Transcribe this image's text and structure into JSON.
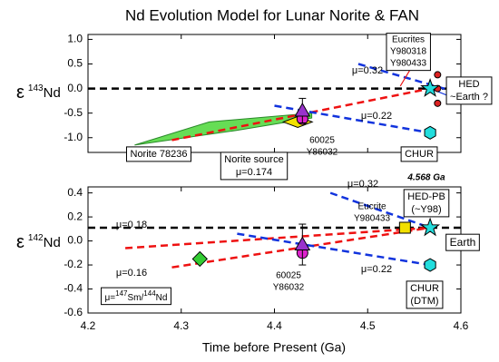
{
  "chart_data": [
    {
      "type": "line",
      "title": "Nd Evolution Model for Lunar Norite & FAN",
      "ylabel": [
        "ε",
        "143",
        "Nd"
      ],
      "xlim": [
        4.2,
        4.6
      ],
      "xticks": [
        4.2,
        4.3,
        4.4,
        4.5,
        4.6
      ],
      "ylim": [
        -1.3,
        1.1
      ],
      "yticks": [
        {
          "value": -1.0,
          "label": "-1.0"
        },
        {
          "value": -0.5,
          "label": "-0.5"
        },
        {
          "value": 0.0,
          "label": "0.0"
        },
        {
          "value": 0.5,
          "label": "0.5"
        },
        {
          "value": 1.0,
          "label": "1.0"
        }
      ],
      "series": [
        {
          "style": "area",
          "color": "#66dd55",
          "x": [
            4.25,
            4.33,
            4.44,
            4.44,
            4.36
          ],
          "values": [
            -1.15,
            -0.68,
            -0.5,
            -0.6,
            -0.85
          ]
        },
        {
          "style": "dashed",
          "color": "#000000",
          "x": [
            4.2,
            4.6
          ],
          "values": [
            0.0,
            0.0
          ]
        },
        {
          "style": "dashed",
          "color": "#ee1111",
          "x": [
            4.29,
            4.567
          ],
          "values": [
            -1.05,
            0.0
          ]
        },
        {
          "style": "dashed",
          "color": "#1133dd",
          "x": [
            4.49,
            4.6
          ],
          "values": [
            0.5,
            -0.1
          ]
        },
        {
          "style": "dashed",
          "color": "#1133dd",
          "x": [
            4.4,
            4.567
          ],
          "values": [
            -0.35,
            -0.9
          ]
        },
        {
          "style": "solid",
          "color": "#ee1111",
          "x": [
            4.535,
            4.565
          ],
          "values": [
            0.05,
            1.0
          ]
        },
        {
          "style": "solid",
          "color": "#1133dd",
          "x": [
            4.567,
            4.6
          ],
          "values": [
            0.0,
            -0.25
          ]
        },
        {
          "marker": "circle",
          "color": "#dd2222",
          "x": [
            4.575,
            4.575,
            4.575
          ],
          "values": [
            0.28,
            0.0,
            -0.3
          ]
        },
        {
          "marker": "diamond",
          "color": "#f2e000",
          "x": [
            4.425
          ],
          "values": [
            -0.68
          ]
        },
        {
          "marker": "circle",
          "color": "#dd22cc",
          "x": [
            4.43
          ],
          "values": [
            -0.62
          ]
        },
        {
          "marker": "triangle",
          "color": "#9933cc",
          "x": [
            4.43
          ],
          "values": [
            -0.45
          ],
          "yerr": [
            0.25
          ]
        },
        {
          "marker": "star",
          "color": "#22dddd",
          "x": [
            4.567
          ],
          "values": [
            0.0
          ]
        },
        {
          "marker": "hexagon",
          "color": "#22dddd",
          "x": [
            4.567
          ],
          "values": [
            -0.9
          ]
        }
      ],
      "annotations": [
        {
          "lines": [
            "Eucrites",
            "Y980318",
            "Y980433"
          ]
        },
        {
          "lines": [
            "μ=0.32"
          ]
        },
        {
          "lines": [
            "μ=0.22"
          ]
        },
        {
          "lines": [
            "60025",
            "Y86032"
          ]
        },
        {
          "lines": [
            "Norite 78236"
          ]
        },
        {
          "lines": [
            "Norite source",
            "μ=0.174"
          ]
        },
        {
          "lines": [
            "CHUR"
          ]
        },
        {
          "lines": [
            "HED",
            "~Earth ?"
          ]
        }
      ]
    },
    {
      "type": "line",
      "xlabel": "Time before Present (Ga)",
      "ylabel": [
        "ε",
        "142",
        "Nd"
      ],
      "xlim": [
        4.2,
        4.6
      ],
      "xticks": [
        4.2,
        4.3,
        4.4,
        4.5,
        4.6
      ],
      "ylim": [
        -0.6,
        0.45
      ],
      "yticks": [
        -0.6,
        -0.4,
        -0.2,
        {
          "value": 0.0,
          "label": "0.0"
        },
        0.2,
        0.4
      ],
      "series": [
        {
          "style": "dashed",
          "color": "#000000",
          "x": [
            4.2,
            4.6
          ],
          "values": [
            0.11,
            0.11
          ]
        },
        {
          "style": "dashed",
          "color": "#ee1111",
          "x": [
            4.24,
            4.567
          ],
          "values": [
            -0.06,
            0.11
          ]
        },
        {
          "style": "dashed",
          "color": "#ee1111",
          "x": [
            4.29,
            4.567
          ],
          "values": [
            -0.22,
            0.11
          ]
        },
        {
          "style": "dashed",
          "color": "#1133dd",
          "x": [
            4.46,
            4.567
          ],
          "values": [
            0.4,
            0.11
          ]
        },
        {
          "style": "dashed",
          "color": "#1133dd",
          "x": [
            4.36,
            4.567
          ],
          "values": [
            0.06,
            -0.2
          ]
        },
        {
          "marker": "diamond",
          "color": "#33cc33",
          "x": [
            4.32
          ],
          "values": [
            -0.15
          ]
        },
        {
          "marker": "circle",
          "color": "#dd22cc",
          "x": [
            4.43
          ],
          "values": [
            -0.1
          ]
        },
        {
          "marker": "triangle",
          "color": "#9933cc",
          "x": [
            4.43
          ],
          "values": [
            -0.03
          ],
          "yerr": [
            0.17
          ]
        },
        {
          "marker": "square",
          "color": "#f2e000",
          "x": [
            4.54
          ],
          "values": [
            0.11
          ]
        },
        {
          "marker": "star",
          "color": "#22dddd",
          "x": [
            4.567
          ],
          "values": [
            0.11
          ]
        },
        {
          "marker": "hexagon",
          "color": "#22dddd",
          "x": [
            4.567
          ],
          "values": [
            -0.2
          ]
        }
      ],
      "annotations": [
        {
          "lines": [
            "4.568 Ga"
          ]
        },
        {
          "lines": [
            "μ=0.32"
          ]
        },
        {
          "lines": [
            "Eucrite",
            "Y980433"
          ]
        },
        {
          "lines": [
            "HED-PB",
            "(~Y98)"
          ]
        },
        {
          "lines": [
            "Earth"
          ]
        },
        {
          "lines": [
            "μ=0.18"
          ]
        },
        {
          "lines": [
            "μ=0.16"
          ]
        },
        {
          "lines": [
            "60025",
            "Y86032"
          ]
        },
        {
          "lines": [
            "μ=0.22"
          ]
        },
        {
          "lines": [
            "CHUR",
            "(DTM)"
          ]
        },
        {
          "parts": [
            "μ=",
            "147",
            "Sm/",
            "144",
            "Nd"
          ]
        }
      ]
    }
  ]
}
